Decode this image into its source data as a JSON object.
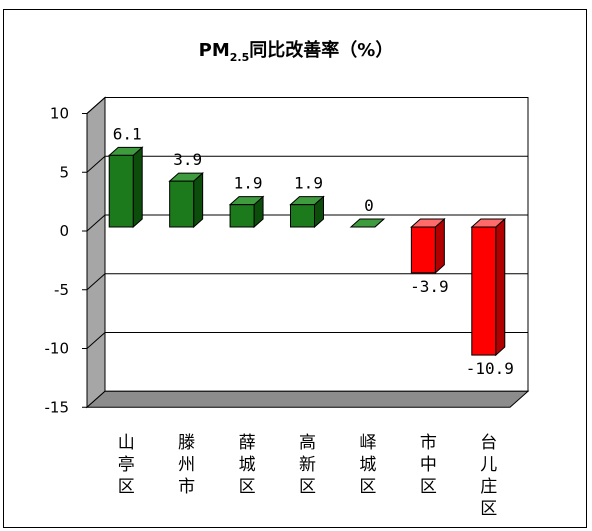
{
  "chart_data": {
    "type": "bar",
    "title": "PM",
    "title_sub": "2.5",
    "title_rest": "同比改善率（%）",
    "categories": [
      "山亭区",
      "滕州市",
      "薛城区",
      "高新区",
      "峄城区",
      "市中区",
      "台儿庄区"
    ],
    "values": [
      6.1,
      3.9,
      1.9,
      1.9,
      0,
      -3.9,
      -10.9
    ],
    "value_labels": [
      "6.1",
      "3.9",
      "1.9",
      "1.9",
      "0",
      "-3.9",
      "-10.9"
    ],
    "ylim": [
      -15,
      10
    ],
    "yticks": [
      10,
      5,
      0,
      -5,
      -10,
      -15
    ],
    "ytick_labels": [
      "10",
      "5",
      "0",
      "-5",
      "-10",
      "-15"
    ],
    "grid": true,
    "legend": "none",
    "colors": {
      "positive": "#1c7a1c",
      "positive_side": "#0c4d0c",
      "positive_top": "#3e9c3e",
      "negative": "#ff0000",
      "negative_side": "#b00000",
      "negative_top": "#ff6a6a",
      "wall": "#ffffff",
      "side_wall": "#a6a6a6",
      "floor": "#8c8c8c"
    }
  }
}
